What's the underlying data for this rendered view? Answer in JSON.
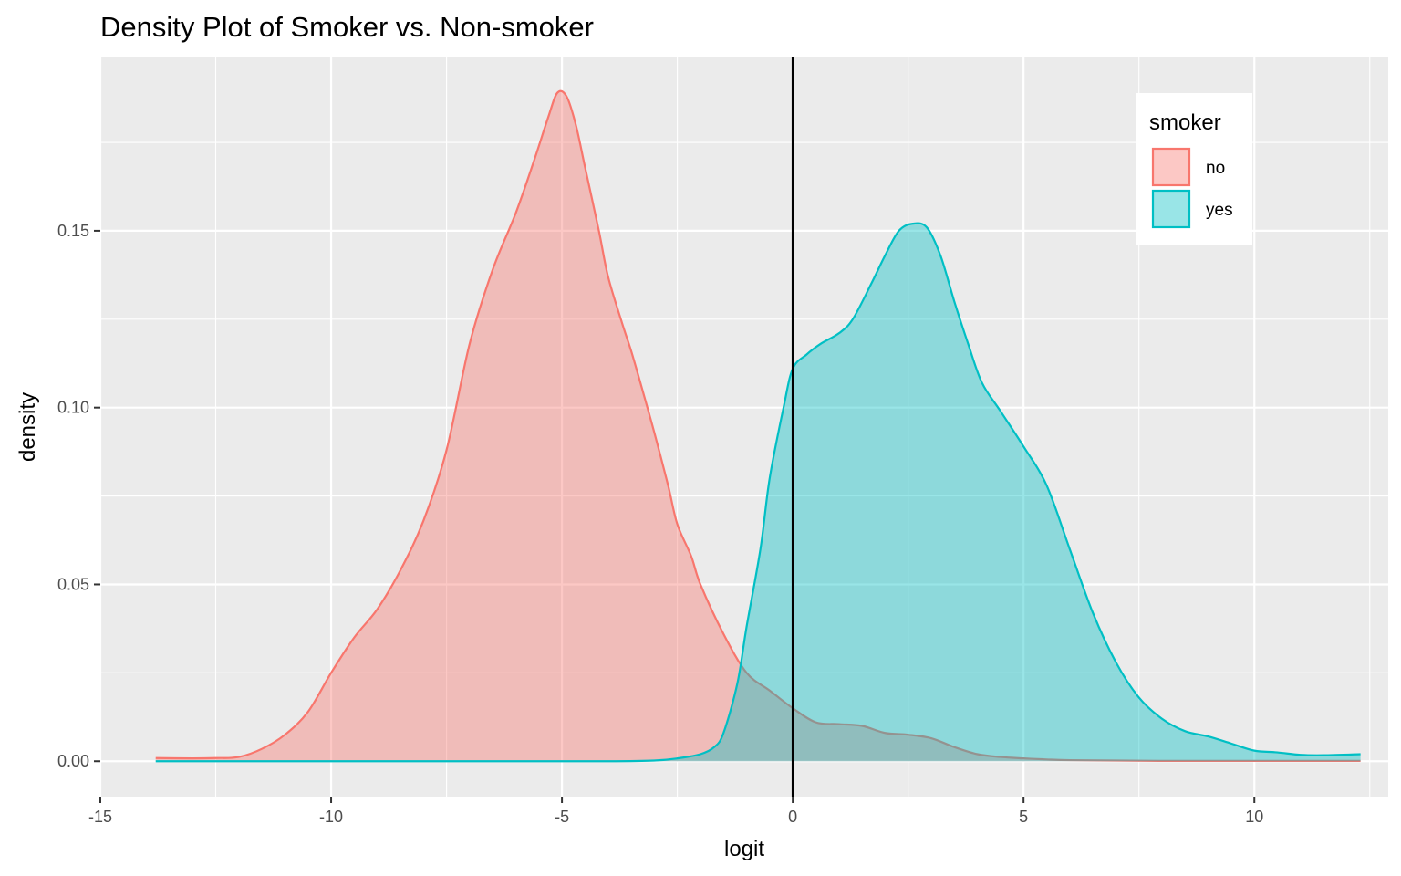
{
  "chart_data": {
    "type": "area",
    "title": "Density Plot of Smoker vs. Non-smoker",
    "xlabel": "logit",
    "ylabel": "density",
    "xlim": [
      -15,
      12.9
    ],
    "ylim": [
      -0.01,
      0.199
    ],
    "x_ticks": [
      -15,
      -10,
      -5,
      0,
      5,
      10
    ],
    "x_tick_labels": [
      "-15",
      "-10",
      "-5",
      "0",
      "5",
      "10"
    ],
    "y_ticks": [
      0.0,
      0.05,
      0.1,
      0.15
    ],
    "y_tick_labels": [
      "0.00",
      "0.05",
      "0.10",
      "0.15"
    ],
    "grid": true,
    "vline_x": 0,
    "legend": {
      "title": "smoker",
      "position": "top-right"
    },
    "series": [
      {
        "name": "no",
        "color": "#F8766D",
        "fill": "#F8766D",
        "fill_opacity": 0.4,
        "x": [
          -13.8,
          -13.0,
          -12.5,
          -12.0,
          -11.5,
          -11.0,
          -10.5,
          -10.0,
          -9.5,
          -9.0,
          -8.5,
          -8.0,
          -7.5,
          -7.0,
          -6.5,
          -6.0,
          -5.6,
          -5.3,
          -5.1,
          -4.9,
          -4.7,
          -4.5,
          -4.2,
          -4.0,
          -3.7,
          -3.5,
          -3.3,
          -3.0,
          -2.7,
          -2.5,
          -2.2,
          -2.0,
          -1.5,
          -1.0,
          -0.5,
          0.0,
          0.5,
          1.0,
          1.5,
          2.0,
          2.5,
          3.0,
          3.5,
          4.0,
          4.5,
          5.0,
          5.5,
          6.0,
          7.0,
          8.0,
          9.0,
          10.0,
          11.0,
          12.3
        ],
        "y": [
          0.0009,
          0.0008,
          0.0009,
          0.0012,
          0.0035,
          0.0075,
          0.014,
          0.025,
          0.035,
          0.043,
          0.054,
          0.068,
          0.088,
          0.118,
          0.139,
          0.155,
          0.17,
          0.182,
          0.189,
          0.188,
          0.18,
          0.168,
          0.15,
          0.137,
          0.124,
          0.116,
          0.107,
          0.093,
          0.078,
          0.067,
          0.058,
          0.05,
          0.036,
          0.025,
          0.02,
          0.015,
          0.011,
          0.0105,
          0.01,
          0.008,
          0.0075,
          0.0065,
          0.004,
          0.002,
          0.0012,
          0.0008,
          0.0005,
          0.0003,
          0.0002,
          0.0001,
          0.0001,
          0.0001,
          0.0001,
          0.0001
        ]
      },
      {
        "name": "yes",
        "color": "#00BFC4",
        "fill": "#00BFC4",
        "fill_opacity": 0.4,
        "x": [
          -13.8,
          -10.0,
          -6.0,
          -4.0,
          -3.0,
          -2.5,
          -2.0,
          -1.7,
          -1.5,
          -1.2,
          -1.0,
          -0.7,
          -0.5,
          -0.2,
          0.0,
          0.3,
          0.6,
          1.0,
          1.3,
          1.7,
          2.0,
          2.3,
          2.6,
          2.9,
          3.2,
          3.5,
          3.8,
          4.1,
          4.5,
          5.0,
          5.5,
          6.0,
          6.5,
          7.0,
          7.5,
          8.0,
          8.5,
          9.0,
          9.5,
          10.0,
          10.5,
          11.0,
          11.5,
          12.3
        ],
        "y": [
          0.0,
          0.0,
          0.0,
          0.0,
          0.0002,
          0.0008,
          0.002,
          0.004,
          0.008,
          0.022,
          0.038,
          0.06,
          0.08,
          0.1,
          0.111,
          0.115,
          0.118,
          0.121,
          0.125,
          0.135,
          0.143,
          0.15,
          0.152,
          0.151,
          0.143,
          0.13,
          0.118,
          0.107,
          0.099,
          0.089,
          0.078,
          0.06,
          0.042,
          0.028,
          0.018,
          0.012,
          0.0085,
          0.007,
          0.005,
          0.003,
          0.0025,
          0.0018,
          0.0017,
          0.002
        ]
      }
    ]
  }
}
